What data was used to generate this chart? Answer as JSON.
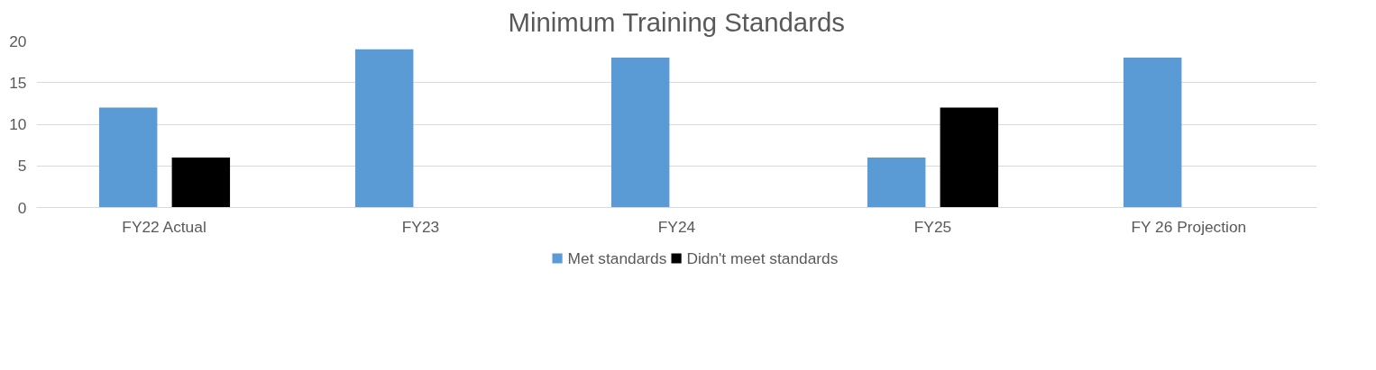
{
  "chart_data": {
    "type": "bar",
    "title": "Minimum Training Standards",
    "categories": [
      "FY22 Actual",
      "FY23",
      "FY24",
      "FY25",
      "FY 26 Projection"
    ],
    "series": [
      {
        "name": "Met standards",
        "color": "#5b9bd5",
        "values": [
          12,
          19,
          18,
          6,
          18
        ]
      },
      {
        "name": "Didn't meet standards",
        "color": "#000000",
        "values": [
          6,
          0,
          0,
          12,
          0
        ]
      }
    ],
    "ylim": [
      0,
      20
    ],
    "yticks": [
      0,
      5,
      10,
      15,
      20
    ],
    "grid": "y",
    "legend": "bottom"
  }
}
